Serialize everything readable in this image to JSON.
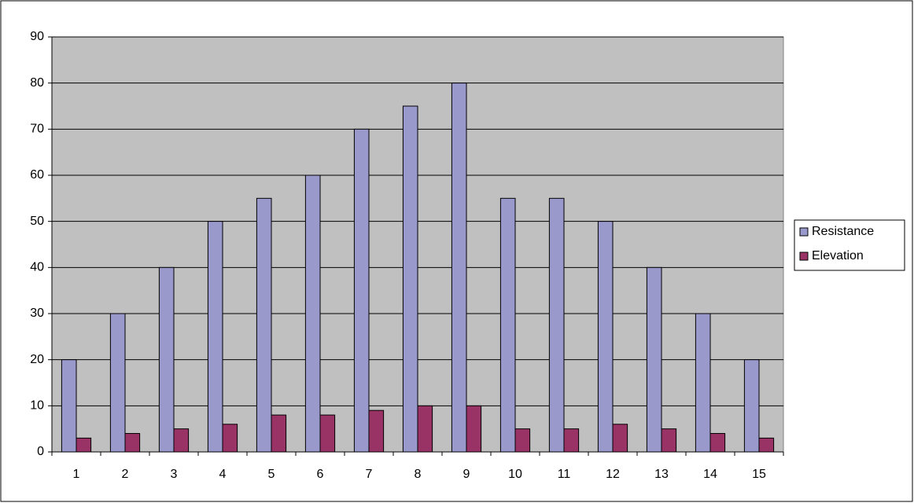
{
  "chart_data": {
    "type": "bar",
    "categories": [
      "1",
      "2",
      "3",
      "4",
      "5",
      "6",
      "7",
      "8",
      "9",
      "10",
      "11",
      "12",
      "13",
      "14",
      "15"
    ],
    "series": [
      {
        "name": "Resistance",
        "color": "#9999cc",
        "values": [
          20,
          30,
          40,
          50,
          55,
          60,
          70,
          75,
          80,
          55,
          55,
          50,
          40,
          30,
          20
        ]
      },
      {
        "name": "Elevation",
        "color": "#993366",
        "values": [
          3,
          4,
          5,
          6,
          8,
          8,
          9,
          10,
          10,
          5,
          5,
          6,
          5,
          4,
          3
        ]
      }
    ],
    "ylim": [
      0,
      90
    ],
    "yticks": [
      0,
      10,
      20,
      30,
      40,
      50,
      60,
      70,
      80,
      90
    ],
    "grid": true,
    "legend": "right",
    "plot_background": "#c0c0c0"
  }
}
